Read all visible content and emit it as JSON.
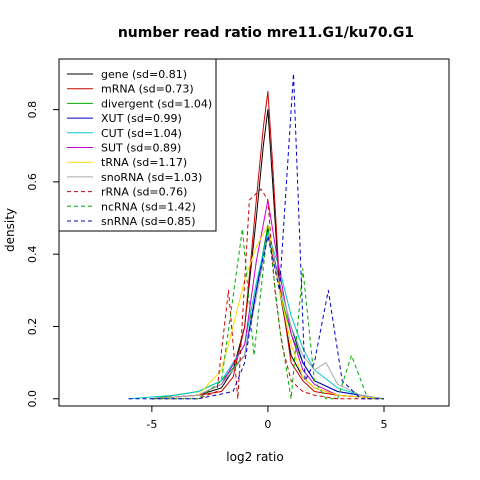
{
  "chart_data": {
    "type": "line",
    "title": "number read ratio mre11.G1/ku70.G1",
    "xlabel": "log2 ratio",
    "ylabel": "density",
    "xlim": [
      -9,
      7.8
    ],
    "ylim": [
      -0.02,
      0.94
    ],
    "x_ticks": [
      -5,
      0,
      5
    ],
    "y_ticks": [
      0.0,
      0.2,
      0.4,
      0.6,
      0.8
    ],
    "x_tick_labels": [
      "-5",
      "0",
      "5"
    ],
    "y_tick_labels": [
      "0.0",
      "0.2",
      "0.4",
      "0.6",
      "0.8"
    ],
    "grid": false,
    "legend_position": "top-left",
    "series": [
      {
        "name": "gene (sd=0.81)",
        "color": "#000000",
        "dash": false,
        "x": [
          -5,
          -3,
          -2,
          -1.5,
          -1,
          -0.5,
          -0.2,
          0,
          0.2,
          0.5,
          1,
          1.5,
          2,
          3,
          5
        ],
        "y": [
          0,
          0.01,
          0.03,
          0.08,
          0.2,
          0.5,
          0.7,
          0.8,
          0.6,
          0.3,
          0.12,
          0.06,
          0.03,
          0.01,
          0
        ]
      },
      {
        "name": "mRNA (sd=0.73)",
        "color": "#cc0000",
        "dash": false,
        "x": [
          -5,
          -3,
          -2,
          -1.5,
          -1,
          -0.5,
          -0.2,
          0,
          0.2,
          0.5,
          1,
          1.5,
          2,
          3,
          5
        ],
        "y": [
          0,
          0.01,
          0.02,
          0.06,
          0.2,
          0.55,
          0.75,
          0.85,
          0.65,
          0.32,
          0.1,
          0.05,
          0.02,
          0.01,
          0
        ]
      },
      {
        "name": "divergent (sd=1.04)",
        "color": "#00aa00",
        "dash": false,
        "x": [
          -5,
          -3,
          -2,
          -1,
          -0.5,
          0,
          0.5,
          1,
          1.5,
          2,
          3,
          4,
          5
        ],
        "y": [
          0,
          0.02,
          0.05,
          0.12,
          0.3,
          0.48,
          0.3,
          0.18,
          0.1,
          0.05,
          0.02,
          0.01,
          0
        ]
      },
      {
        "name": "XUT (sd=0.99)",
        "color": "#0000cc",
        "dash": false,
        "x": [
          -5,
          -3,
          -2,
          -1,
          -0.5,
          0,
          0.5,
          1,
          1.5,
          2,
          3,
          4,
          5
        ],
        "y": [
          0,
          0.01,
          0.04,
          0.12,
          0.3,
          0.47,
          0.32,
          0.2,
          0.1,
          0.05,
          0.02,
          0.01,
          0
        ]
      },
      {
        "name": "CUT (sd=1.04)",
        "color": "#00cccc",
        "dash": false,
        "x": [
          -6,
          -4,
          -3,
          -2,
          -1,
          -0.5,
          0,
          0.5,
          1,
          1.5,
          2,
          3,
          4,
          5
        ],
        "y": [
          0,
          0.01,
          0.02,
          0.05,
          0.15,
          0.32,
          0.46,
          0.36,
          0.23,
          0.14,
          0.08,
          0.03,
          0.01,
          0
        ]
      },
      {
        "name": "SUT (sd=0.89)",
        "color": "#cc00cc",
        "dash": false,
        "x": [
          -5,
          -3,
          -2,
          -1,
          -0.5,
          0,
          0.5,
          1,
          1.5,
          2,
          3,
          4,
          5
        ],
        "y": [
          0,
          0.01,
          0.04,
          0.15,
          0.38,
          0.55,
          0.35,
          0.18,
          0.08,
          0.04,
          0.01,
          0.005,
          0
        ]
      },
      {
        "name": "tRNA (sd=1.17)",
        "color": "#ffdd00",
        "dash": false,
        "x": [
          -5,
          -3,
          -2,
          -1.5,
          -1,
          -0.5,
          0,
          0.5,
          1,
          1.5,
          2,
          3,
          5
        ],
        "y": [
          0,
          0.01,
          0.08,
          0.2,
          0.33,
          0.42,
          0.48,
          0.3,
          0.15,
          0.06,
          0.03,
          0.01,
          0
        ]
      },
      {
        "name": "snoRNA (sd=1.03)",
        "color": "#aaaaaa",
        "dash": false,
        "x": [
          -5,
          -3,
          -2,
          -1,
          -0.5,
          0,
          0.5,
          1,
          1.5,
          2,
          2.5,
          3,
          4,
          5
        ],
        "y": [
          0,
          0.01,
          0.04,
          0.12,
          0.28,
          0.45,
          0.32,
          0.2,
          0.12,
          0.08,
          0.1,
          0.04,
          0.01,
          0
        ]
      },
      {
        "name": "rRNA (sd=0.76)",
        "color": "#cc0000",
        "dash": true,
        "x": [
          -5,
          -3,
          -2.2,
          -1.7,
          -1.3,
          -0.8,
          -0.3,
          0,
          0.3,
          0.6,
          1,
          1.5,
          2,
          3,
          5
        ],
        "y": [
          0,
          0.0,
          0.02,
          0.3,
          0.0,
          0.55,
          0.58,
          0.55,
          0.3,
          0.15,
          0.05,
          0.02,
          0.01,
          0,
          0
        ]
      },
      {
        "name": "ncRNA (sd=1.42)",
        "color": "#00aa00",
        "dash": true,
        "x": [
          -5,
          -3,
          -2,
          -1.1,
          -0.6,
          0,
          0.5,
          1,
          1.5,
          2,
          2.5,
          3,
          3.6,
          4.3,
          5
        ],
        "y": [
          0,
          0.0,
          0.05,
          0.47,
          0.12,
          0.48,
          0.2,
          0.0,
          0.36,
          0.05,
          0.0,
          0.0,
          0.12,
          0.0,
          0
        ]
      },
      {
        "name": "snRNA (sd=0.85)",
        "color": "#0000cc",
        "dash": true,
        "x": [
          -6,
          -3,
          -1.5,
          -1,
          -0.5,
          0,
          0.5,
          1.1,
          1.6,
          2,
          2.6,
          3.2,
          4,
          5
        ],
        "y": [
          0,
          0.0,
          0.02,
          0.1,
          0.3,
          0.45,
          0.3,
          0.9,
          0.05,
          0.1,
          0.3,
          0.05,
          0.0,
          0
        ]
      }
    ]
  }
}
